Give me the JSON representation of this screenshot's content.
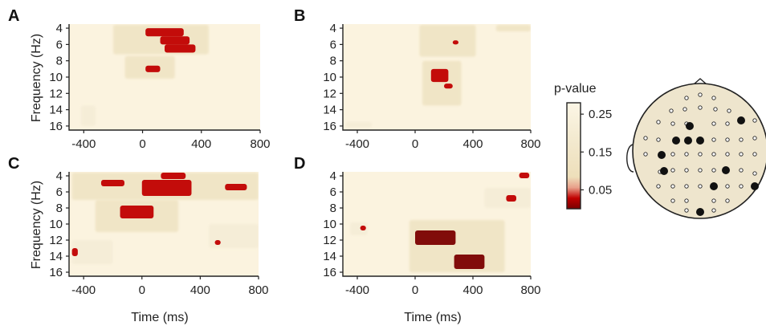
{
  "figure": {
    "y_axis_label": "Frequency (Hz)",
    "x_axis_label": "Time (ms)",
    "colorbar": {
      "title": "p-value",
      "tick_labels": [
        "0.25",
        "0.15",
        "0.05"
      ],
      "tick_values": [
        0.25,
        0.15,
        0.05
      ],
      "range": [
        0.0,
        0.28
      ],
      "colors": {
        "high": "#fbf3df",
        "mid": "#efe3c2",
        "low": "#c00000",
        "darkest": "#7a0000"
      }
    },
    "head_map": {
      "large_dot_count": 11,
      "head_fill": "#eee5cd",
      "dot_color": "#111111"
    }
  },
  "chart_data": [
    {
      "panel": "A",
      "type": "heatmap",
      "x_ticks": [
        "-400",
        "0",
        "400",
        "800"
      ],
      "x_tick_values": [
        -400,
        0,
        400,
        800
      ],
      "y_ticks": [
        "4",
        "6",
        "8",
        "10",
        "12",
        "14",
        "16"
      ],
      "y_tick_values": [
        4,
        6,
        8,
        10,
        12,
        14,
        16
      ],
      "xlim": [
        -500,
        800
      ],
      "ylim": [
        3.5,
        16.5
      ],
      "value_meaning": "p-value",
      "regions": [
        {
          "t": [
            20,
            280
          ],
          "f": [
            4,
            5
          ],
          "p": 0.03
        },
        {
          "t": [
            120,
            320
          ],
          "f": [
            5,
            6
          ],
          "p": 0.03
        },
        {
          "t": [
            150,
            360
          ],
          "f": [
            6,
            7
          ],
          "p": 0.04
        },
        {
          "t": [
            20,
            120
          ],
          "f": [
            8.6,
            9.4
          ],
          "p": 0.04
        },
        {
          "t": [
            -200,
            450
          ],
          "f": [
            3.6,
            7.2
          ],
          "p": 0.15
        },
        {
          "t": [
            -120,
            220
          ],
          "f": [
            7.4,
            10.2
          ],
          "p": 0.17
        },
        {
          "t": [
            -420,
            -320
          ],
          "f": [
            13.5,
            16
          ],
          "p": 0.22
        }
      ]
    },
    {
      "panel": "B",
      "type": "heatmap",
      "x_ticks": [
        "-400",
        "0",
        "400",
        "800"
      ],
      "x_tick_values": [
        -400,
        0,
        400,
        800
      ],
      "y_ticks": [
        "4",
        "6",
        "8",
        "10",
        "12",
        "14",
        "16"
      ],
      "y_tick_values": [
        4,
        6,
        8,
        10,
        12,
        14,
        16
      ],
      "xlim": [
        -500,
        800
      ],
      "ylim": [
        3.5,
        16.5
      ],
      "value_meaning": "p-value",
      "regions": [
        {
          "t": [
            110,
            230
          ],
          "f": [
            9,
            10.6
          ],
          "p": 0.03
        },
        {
          "t": [
            200,
            260
          ],
          "f": [
            10.8,
            11.4
          ],
          "p": 0.04
        },
        {
          "t": [
            260,
            300
          ],
          "f": [
            5.5,
            6
          ],
          "p": 0.05
        },
        {
          "t": [
            30,
            420
          ],
          "f": [
            3.6,
            7.5
          ],
          "p": 0.17
        },
        {
          "t": [
            50,
            320
          ],
          "f": [
            8,
            13.5
          ],
          "p": 0.16
        },
        {
          "t": [
            560,
            800
          ],
          "f": [
            3.6,
            4.4
          ],
          "p": 0.15
        },
        {
          "t": [
            -480,
            -300
          ],
          "f": [
            15.5,
            16.2
          ],
          "p": 0.23
        }
      ]
    },
    {
      "panel": "C",
      "type": "heatmap",
      "x_ticks": [
        "-400",
        "0",
        "400",
        "800"
      ],
      "x_tick_values": [
        -400,
        0,
        400,
        800
      ],
      "y_ticks": [
        "4",
        "6",
        "8",
        "10",
        "12",
        "14",
        "16"
      ],
      "y_tick_values": [
        4,
        6,
        8,
        10,
        12,
        14,
        16
      ],
      "xlim": [
        -500,
        800
      ],
      "ylim": [
        3.5,
        16.5
      ],
      "value_meaning": "p-value",
      "regions": [
        {
          "t": [
            130,
            300
          ],
          "f": [
            3.6,
            4.4
          ],
          "p": 0.03
        },
        {
          "t": [
            -280,
            -120
          ],
          "f": [
            4.5,
            5.3
          ],
          "p": 0.03
        },
        {
          "t": [
            0,
            340
          ],
          "f": [
            4.5,
            6.5
          ],
          "p": 0.03
        },
        {
          "t": [
            -150,
            80
          ],
          "f": [
            7.7,
            9.3
          ],
          "p": 0.04
        },
        {
          "t": [
            570,
            720
          ],
          "f": [
            5,
            5.8
          ],
          "p": 0.04
        },
        {
          "t": [
            500,
            540
          ],
          "f": [
            12,
            12.6
          ],
          "p": 0.05
        },
        {
          "t": [
            -480,
            -440
          ],
          "f": [
            13,
            14
          ],
          "p": 0.05
        },
        {
          "t": [
            -480,
            800
          ],
          "f": [
            3.6,
            7
          ],
          "p": 0.16
        },
        {
          "t": [
            -320,
            250
          ],
          "f": [
            7,
            11
          ],
          "p": 0.17
        },
        {
          "t": [
            460,
            800
          ],
          "f": [
            10,
            13
          ],
          "p": 0.18
        },
        {
          "t": [
            -480,
            -200
          ],
          "f": [
            12,
            15
          ],
          "p": 0.18
        }
      ]
    },
    {
      "panel": "D",
      "type": "heatmap",
      "x_ticks": [
        "-400",
        "0",
        "400",
        "800"
      ],
      "x_tick_values": [
        -400,
        0,
        400,
        800
      ],
      "y_ticks": [
        "4",
        "6",
        "8",
        "10",
        "12",
        "14",
        "16"
      ],
      "y_tick_values": [
        4,
        6,
        8,
        10,
        12,
        14,
        16
      ],
      "xlim": [
        -500,
        800
      ],
      "ylim": [
        3.5,
        16.5
      ],
      "value_meaning": "p-value",
      "regions": [
        {
          "t": [
            0,
            280
          ],
          "f": [
            10.8,
            12.6
          ],
          "p": 0.02
        },
        {
          "t": [
            270,
            480
          ],
          "f": [
            13.8,
            15.6
          ],
          "p": 0.02
        },
        {
          "t": [
            720,
            790
          ],
          "f": [
            3.6,
            4.3
          ],
          "p": 0.04
        },
        {
          "t": [
            630,
            700
          ],
          "f": [
            6.4,
            7.2
          ],
          "p": 0.05
        },
        {
          "t": [
            -380,
            -340
          ],
          "f": [
            10.2,
            10.8
          ],
          "p": 0.05
        },
        {
          "t": [
            -40,
            620
          ],
          "f": [
            9.5,
            16
          ],
          "p": 0.16
        },
        {
          "t": [
            480,
            800
          ],
          "f": [
            5.5,
            8
          ],
          "p": 0.19
        },
        {
          "t": [
            -450,
            -330
          ],
          "f": [
            9.8,
            11.4
          ],
          "p": 0.2
        }
      ]
    }
  ]
}
